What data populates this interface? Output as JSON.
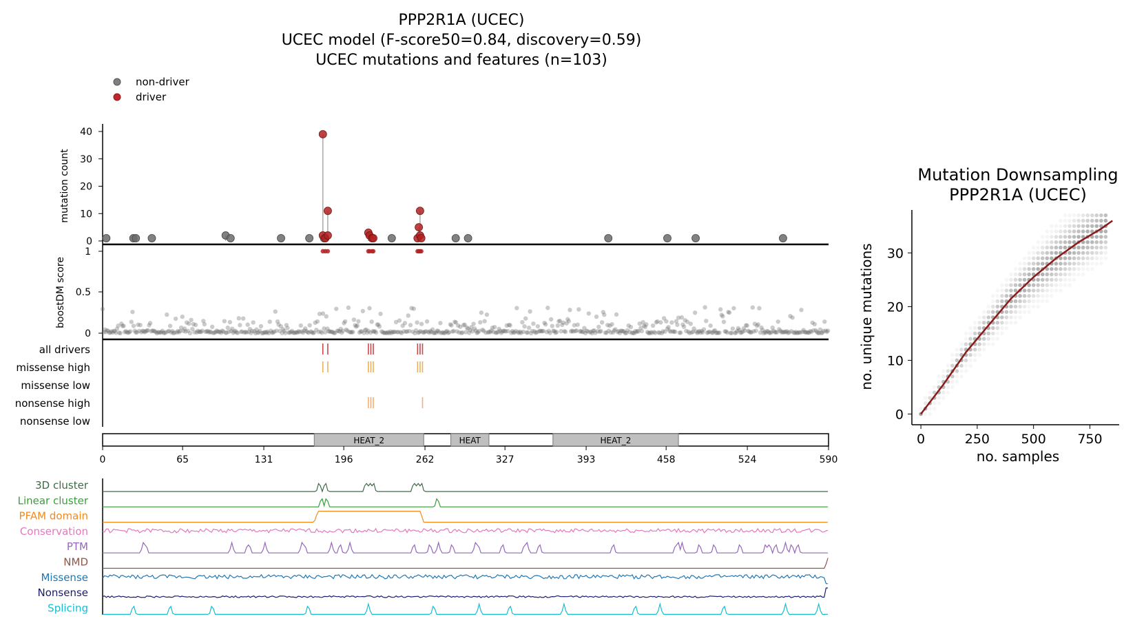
{
  "main": {
    "title_lines": [
      "PPP2R1A (UCEC)",
      "UCEC model (F-score50=0.84, discovery=0.59)",
      "UCEC mutations and features (n=103)"
    ],
    "legend": [
      {
        "label": "non-driver",
        "color": "#7f7f7f"
      },
      {
        "label": "driver",
        "color": "#c0272d"
      }
    ]
  },
  "colors": {
    "non_driver": "#6b6b6b",
    "driver": "#b22222",
    "stick": "#a9a9a9",
    "domain_fill": "#bfbfbf",
    "downsampling_line": "#8b1a1a"
  },
  "chart_data": [
    {
      "type": "scatter",
      "name": "mutation-lollipop",
      "ylabel": "mutation count",
      "yticks": [
        0,
        10,
        20,
        30,
        40
      ],
      "ylim": [
        0,
        42
      ],
      "xlim": [
        0,
        590
      ],
      "non_driver": [
        [
          3,
          1
        ],
        [
          25,
          1
        ],
        [
          27,
          1
        ],
        [
          40,
          1
        ],
        [
          100,
          2
        ],
        [
          104,
          1
        ],
        [
          145,
          1
        ],
        [
          168,
          1
        ],
        [
          180,
          1
        ],
        [
          235,
          1
        ],
        [
          287,
          1
        ],
        [
          297,
          1
        ],
        [
          411,
          1
        ],
        [
          459,
          1
        ],
        [
          482,
          1
        ],
        [
          553,
          1
        ]
      ],
      "driver": [
        [
          179,
          39
        ],
        [
          179,
          2
        ],
        [
          181,
          1
        ],
        [
          183,
          11
        ],
        [
          183,
          2
        ],
        [
          216,
          3
        ],
        [
          217,
          2
        ],
        [
          219,
          1
        ],
        [
          220,
          1
        ],
        [
          256,
          1
        ],
        [
          257,
          5
        ],
        [
          258,
          11
        ],
        [
          258,
          2
        ],
        [
          259,
          1
        ]
      ]
    },
    {
      "type": "scatter",
      "name": "boostdm-score",
      "ylabel": "boostDM score",
      "yticks": [
        "0",
        "0.5",
        "1"
      ],
      "ylim": [
        0,
        1
      ],
      "drivers_at_1": [
        179,
        181,
        183,
        216,
        217,
        219,
        220,
        256,
        257,
        258,
        259
      ],
      "background_max_score": 0.32
    },
    {
      "type": "table",
      "name": "driver-tracks",
      "rows": [
        "all drivers",
        "missense high",
        "missense low",
        "nonsense high",
        "nonsense low"
      ],
      "marks": {
        "all drivers": [
          179,
          183,
          216,
          218,
          220,
          256,
          258,
          260
        ],
        "missense high": [
          179,
          183,
          216,
          218,
          220,
          256,
          258,
          260
        ],
        "missense low": [],
        "nonsense high": [
          216,
          218,
          220,
          260
        ],
        "nonsense low": []
      }
    },
    {
      "type": "bar",
      "name": "domain-track",
      "xticks": [
        "0",
        "65",
        "131",
        "196",
        "262",
        "327",
        "393",
        "458",
        "524",
        "590"
      ],
      "domains": [
        {
          "label": "HEAT_2",
          "start": 172,
          "end": 261
        },
        {
          "label": "HEAT",
          "start": 283,
          "end": 314
        },
        {
          "label": "HEAT_2",
          "start": 366,
          "end": 468
        }
      ]
    },
    {
      "type": "line",
      "name": "feature-tracks",
      "series": [
        {
          "name": "3D cluster",
          "color": "#3d6b45",
          "peaks": [
            176,
            181,
            214,
            217,
            220,
            253,
            256,
            259
          ]
        },
        {
          "name": "Linear cluster",
          "color": "#3a9e3a",
          "peaks": [
            178,
            182,
            272
          ]
        },
        {
          "name": "PFAM domain",
          "color": "#f28a1d",
          "ranges": [
            [
              172,
              261
            ]
          ]
        },
        {
          "name": "Conservation",
          "color": "#e377c2",
          "style": "noise"
        },
        {
          "name": "PTM",
          "color": "#9467bd",
          "peaks": [
            33,
            35,
            105,
            118,
            119,
            132,
            162,
            164,
            186,
            193,
            201,
            253,
            266,
            273,
            284,
            303,
            305,
            325,
            343,
            345,
            355,
            415,
            466,
            468,
            471,
            485,
            497,
            518,
            539,
            542,
            547,
            555,
            560,
            565
          ]
        },
        {
          "name": "NMD",
          "color": "#8c564b",
          "style": "end-rise"
        },
        {
          "name": "Missense",
          "color": "#1f77b4",
          "style": "noise"
        },
        {
          "name": "Nonsense",
          "color": "#1a1a6e",
          "style": "noise"
        },
        {
          "name": "Splicing",
          "color": "#17becf",
          "peaks": [
            25,
            55,
            89,
            167,
            216,
            269,
            306,
            331,
            375,
            433,
            453,
            505,
            555,
            582
          ]
        }
      ]
    },
    {
      "type": "scatter",
      "name": "mutation-downsampling",
      "title_lines": [
        "Mutation Downsampling",
        "PPP2R1A (UCEC)"
      ],
      "xlabel": "no. samples",
      "ylabel": "no. unique mutations",
      "xticks": [
        0,
        250,
        500,
        750
      ],
      "yticks": [
        0,
        10,
        20,
        30
      ],
      "xlim": [
        -40,
        880
      ],
      "ylim": [
        -2,
        38
      ],
      "fit_line": [
        [
          0,
          0
        ],
        [
          100,
          5.5
        ],
        [
          200,
          11.5
        ],
        [
          300,
          16.5
        ],
        [
          400,
          21.5
        ],
        [
          500,
          25.5
        ],
        [
          600,
          29
        ],
        [
          700,
          32
        ],
        [
          800,
          34.5
        ],
        [
          850,
          36
        ]
      ]
    }
  ]
}
